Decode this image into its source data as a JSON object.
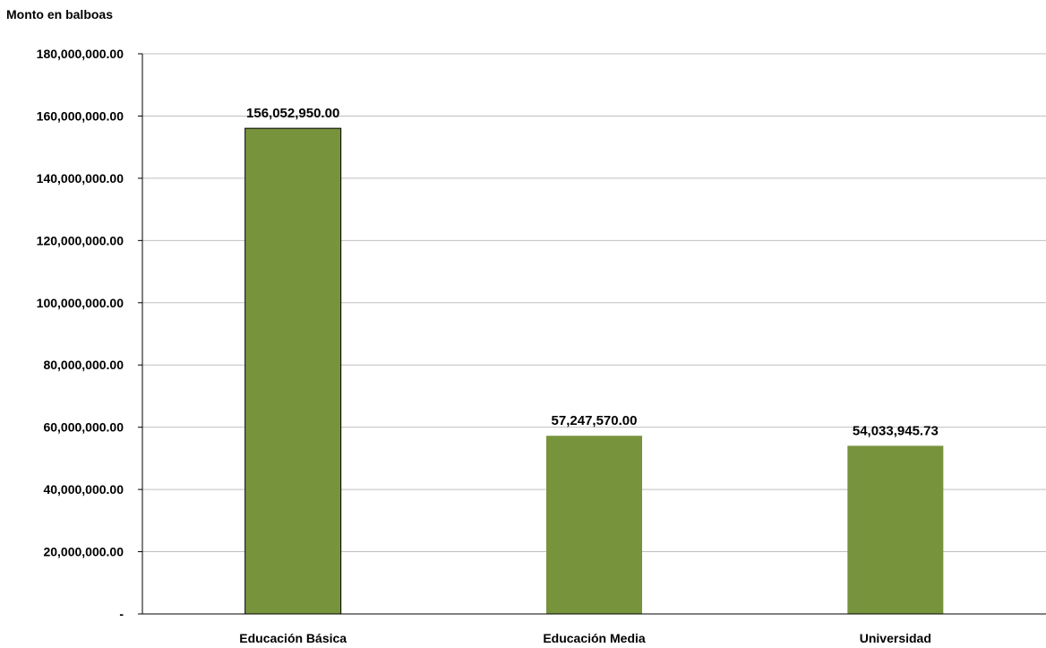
{
  "chart_data": {
    "type": "bar",
    "title": "",
    "ylabel": "Monto en balboas",
    "xlabel": "",
    "categories": [
      "Educación Básica",
      "Educación Media",
      "Universidad"
    ],
    "values": [
      156052950.0,
      57247570.0,
      54033945.73
    ],
    "value_labels": [
      "156,052,950.00",
      "57,247,570.00",
      "54,033,945.73"
    ],
    "ylim": [
      0,
      180000000
    ],
    "yticks": [
      0,
      20000000,
      40000000,
      60000000,
      80000000,
      100000000,
      120000000,
      140000000,
      160000000,
      180000000
    ],
    "ytick_labels": [
      "-",
      "20,000,000.00",
      "40,000,000.00",
      "60,000,000.00",
      "80,000,000.00",
      "100,000,000.00",
      "120,000,000.00",
      "140,000,000.00",
      "160,000,000.00",
      "180,000,000.00"
    ],
    "grid": true,
    "legend": "none",
    "colors": {
      "bar": "#77933c",
      "grid": "#bfbfbf",
      "axis": "#000000"
    }
  }
}
